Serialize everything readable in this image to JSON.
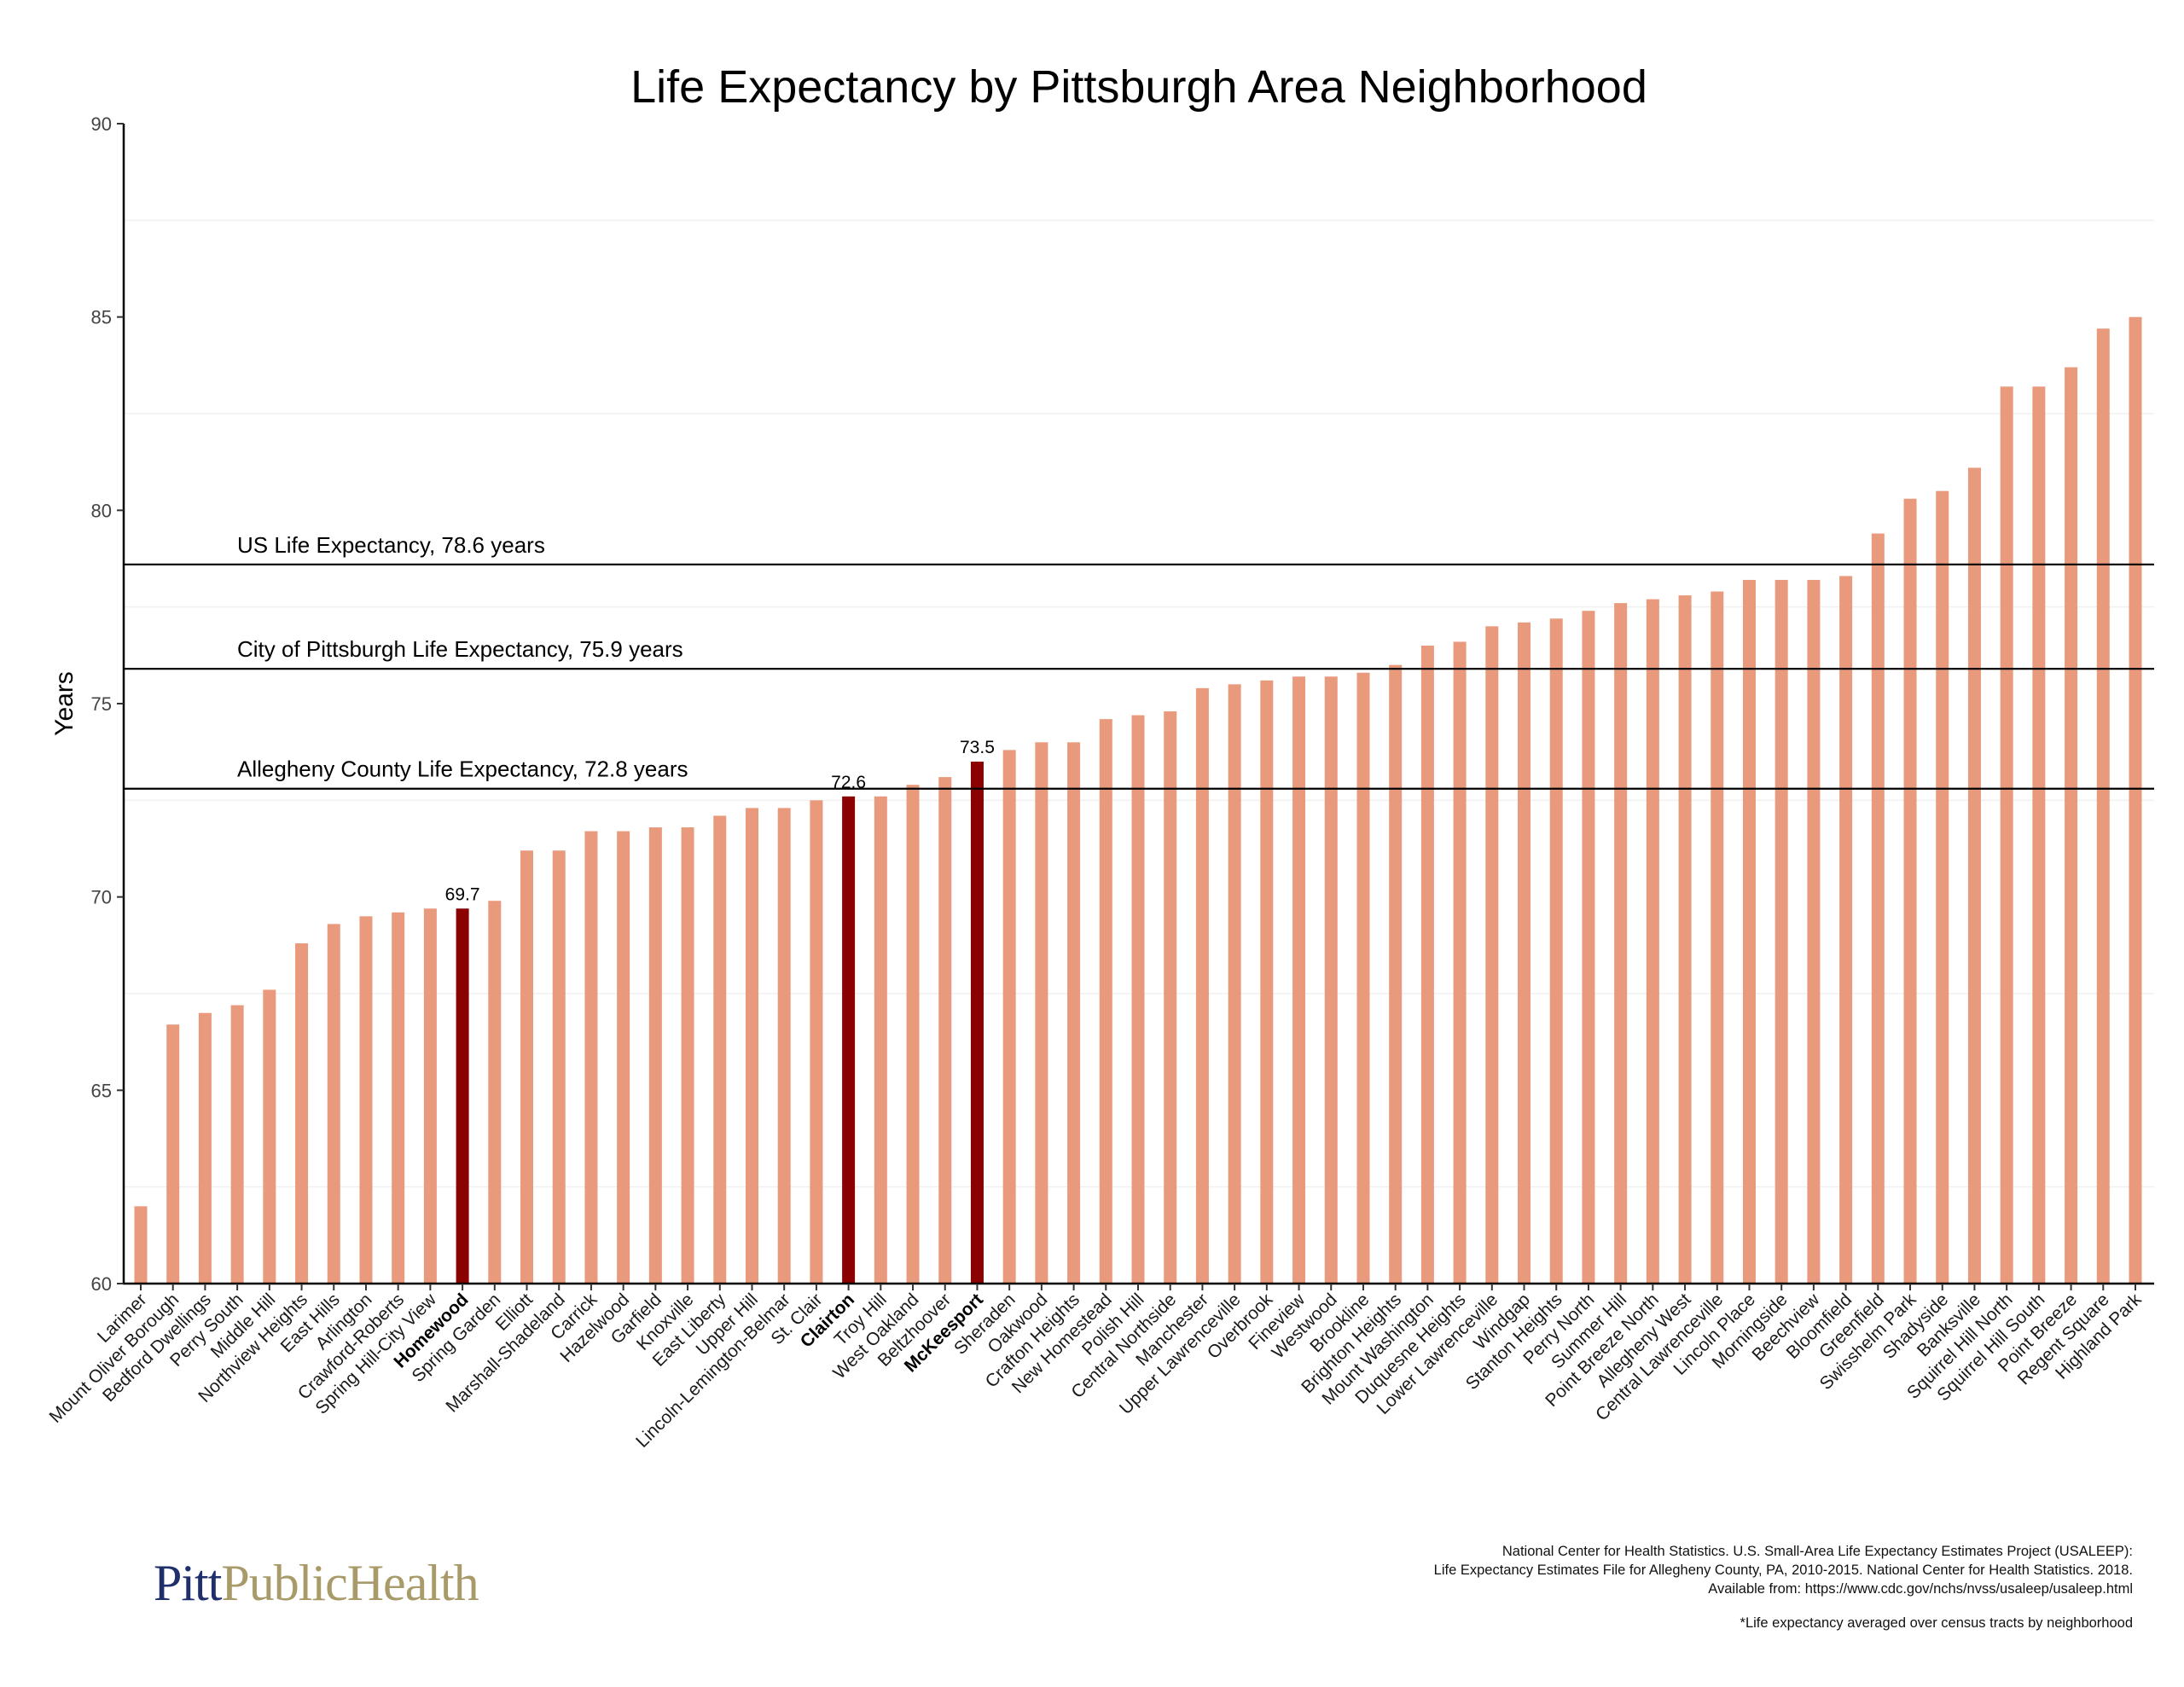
{
  "chart_data": {
    "type": "bar",
    "title": "Life Expectancy by Pittsburgh Area Neighborhood",
    "xlabel": "",
    "ylabel": "Years",
    "ylim": [
      60,
      90
    ],
    "yticks": [
      60,
      65,
      70,
      75,
      80,
      85,
      90
    ],
    "grid": true,
    "legend": "none",
    "bar_color": "#e99a7c",
    "highlight_color": "#8b0000",
    "categories": [
      "Larimer",
      "Mount Oliver Borough",
      "Bedford Dwellings",
      "Perry South",
      "Middle Hill",
      "Northview Heights",
      "East Hills",
      "Arlington",
      "Crawford-Roberts",
      "Spring Hill-City View",
      "Homewood",
      "Spring Garden",
      "Elliott",
      "Marshall-Shadeland",
      "Carrick",
      "Hazelwood",
      "Garfield",
      "Knoxville",
      "East Liberty",
      "Upper Hill",
      "Lincoln-Lemington-Belmar",
      "St. Clair",
      "Clairton",
      "Troy Hill",
      "West Oakland",
      "Beltzhoover",
      "McKeesport",
      "Sheraden",
      "Oakwood",
      "Crafton Heights",
      "New Homestead",
      "Polish Hill",
      "Central Northside",
      "Manchester",
      "Upper Lawrenceville",
      "Overbrook",
      "Fineview",
      "Westwood",
      "Brookline",
      "Brighton Heights",
      "Mount Washington",
      "Duquesne Heights",
      "Lower Lawrenceville",
      "Windgap",
      "Stanton Heights",
      "Perry North",
      "Summer Hill",
      "Point Breeze North",
      "Allegheny West",
      "Central Lawrenceville",
      "Lincoln Place",
      "Morningside",
      "Beechview",
      "Bloomfield",
      "Greenfield",
      "Swisshelm Park",
      "Shadyside",
      "Banksville",
      "Squirrel Hill North",
      "Squirrel Hill South",
      "Point Breeze",
      "Regent Square",
      "Highland Park"
    ],
    "values": [
      62.0,
      66.7,
      67.0,
      67.2,
      67.6,
      68.8,
      69.3,
      69.5,
      69.6,
      69.7,
      69.7,
      69.9,
      71.2,
      71.2,
      71.7,
      71.7,
      71.8,
      71.8,
      72.1,
      72.3,
      72.3,
      72.5,
      72.6,
      72.6,
      72.9,
      73.1,
      73.5,
      73.8,
      74.0,
      74.0,
      74.6,
      74.7,
      74.8,
      75.4,
      75.5,
      75.6,
      75.7,
      75.7,
      75.8,
      76.0,
      76.5,
      76.6,
      77.0,
      77.1,
      77.2,
      77.4,
      77.6,
      77.7,
      77.8,
      77.9,
      78.2,
      78.2,
      78.2,
      78.3,
      79.4,
      80.3,
      80.5,
      81.1,
      83.2,
      83.2,
      83.7,
      84.7,
      85.0
    ],
    "highlighted": [
      "Homewood",
      "Clairton",
      "McKeesport"
    ],
    "data_labels": [
      {
        "category": "Homewood",
        "text": "69.7"
      },
      {
        "category": "Clairton",
        "text": "72.6"
      },
      {
        "category": "McKeesport",
        "text": "73.5"
      }
    ],
    "reference_lines": [
      {
        "value": 78.6,
        "label": "US Life Expectancy, 78.6 years"
      },
      {
        "value": 75.9,
        "label": "City of Pittsburgh Life Expectancy, 75.9 years"
      },
      {
        "value": 72.8,
        "label": "Allegheny County Life Expectancy, 72.8 years"
      }
    ]
  },
  "logo": {
    "part1": "Pitt",
    "part2": "PublicHealth"
  },
  "source": {
    "line1": "National Center for Health Statistics. U.S. Small-Area Life Expectancy Estimates Project (USALEEP):",
    "line2": "Life Expectancy Estimates File for Allegheny County, PA, 2010-2015. National Center for Health Statistics. 2018.",
    "line3": "Available from: https://www.cdc.gov/nchs/nvss/usaleep/usaleep.html"
  },
  "footnote": "*Life expectancy averaged over census tracts by neighborhood"
}
